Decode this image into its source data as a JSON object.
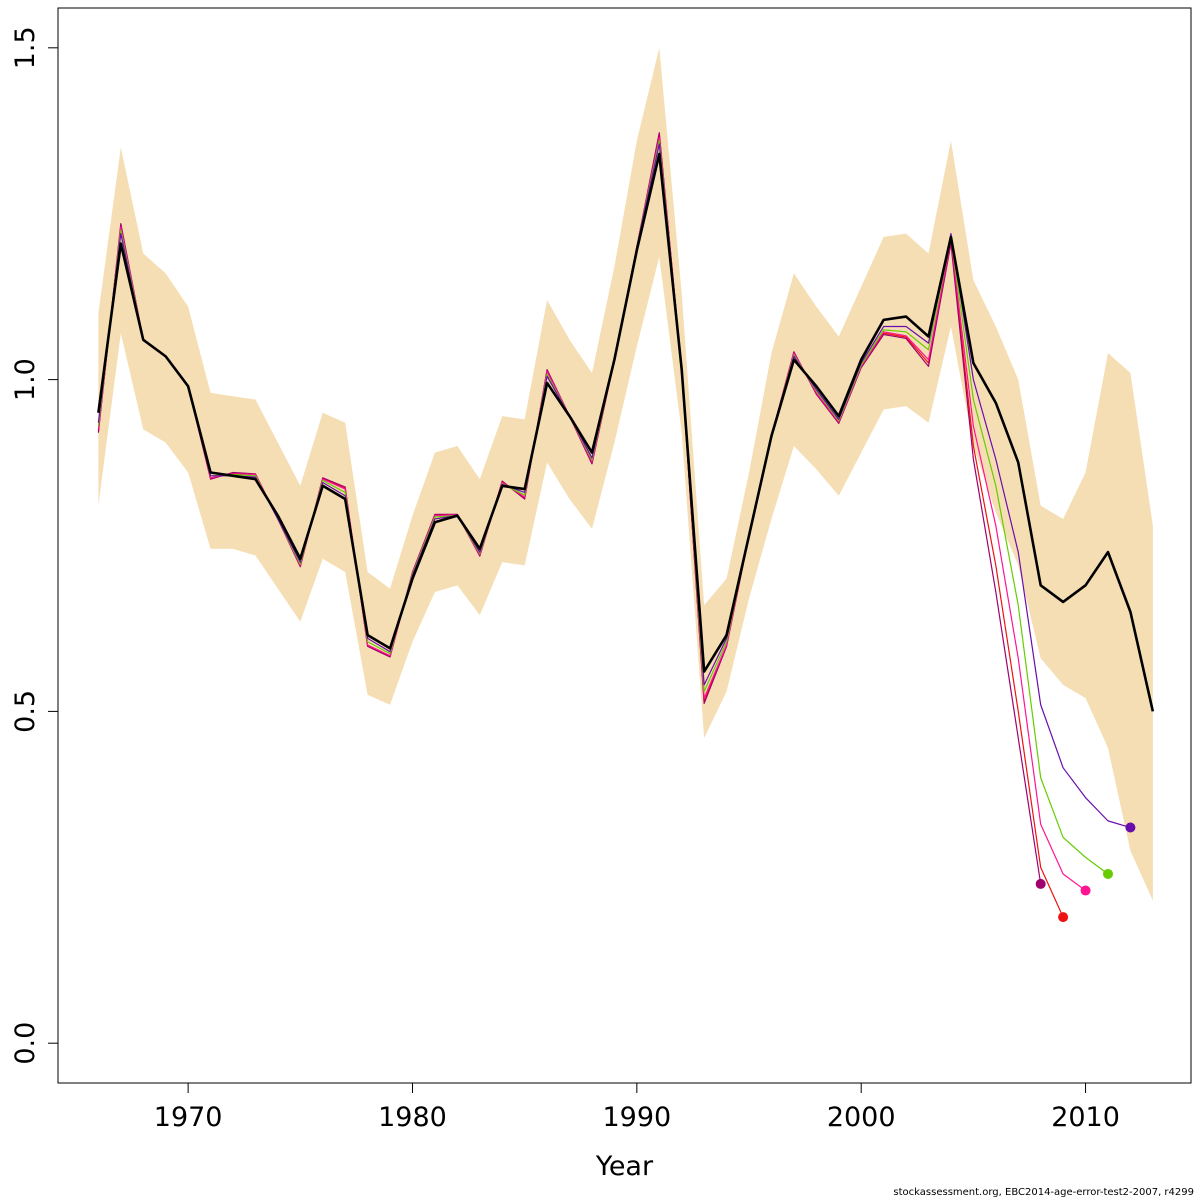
{
  "chart_data": {
    "type": "line",
    "title": "",
    "xlabel": "Year",
    "ylabel": "",
    "xlim": [
      1964.2,
      2014.7
    ],
    "ylim": [
      -0.06,
      1.56
    ],
    "x_ticks": [
      1970,
      1980,
      1990,
      2000,
      2010
    ],
    "x_tick_labels": [
      "1970",
      "1980",
      "1990",
      "2000",
      "2010"
    ],
    "y_ticks": [
      0.0,
      0.5,
      1.0,
      1.5
    ],
    "y_tick_labels": [
      "0.0",
      "0.5",
      "1.0",
      "1.5"
    ],
    "band_color": "#F5DEB3",
    "band": {
      "x": [
        1966,
        1967,
        1968,
        1969,
        1970,
        1971,
        1972,
        1973,
        1974,
        1975,
        1976,
        1977,
        1978,
        1979,
        1980,
        1981,
        1982,
        1983,
        1984,
        1985,
        1986,
        1987,
        1988,
        1989,
        1990,
        1991,
        1992,
        1993,
        1994,
        1995,
        1996,
        1997,
        1998,
        1999,
        2000,
        2001,
        2002,
        2003,
        2004,
        2005,
        2006,
        2007,
        2008,
        2009,
        2010,
        2011,
        2012,
        2013
      ],
      "upper": [
        1.1,
        1.35,
        1.19,
        1.16,
        1.11,
        0.98,
        0.975,
        0.97,
        0.905,
        0.84,
        0.95,
        0.935,
        0.71,
        0.685,
        0.795,
        0.89,
        0.9,
        0.85,
        0.945,
        0.94,
        1.12,
        1.06,
        1.01,
        1.17,
        1.36,
        1.5,
        1.13,
        0.66,
        0.7,
        0.86,
        1.04,
        1.16,
        1.11,
        1.065,
        1.14,
        1.215,
        1.22,
        1.19,
        1.36,
        1.15,
        1.08,
        1.0,
        0.81,
        0.79,
        0.86,
        1.04,
        1.01,
        0.78
      ],
      "lower": [
        0.81,
        1.07,
        0.925,
        0.905,
        0.86,
        0.745,
        0.745,
        0.735,
        0.685,
        0.635,
        0.73,
        0.71,
        0.525,
        0.51,
        0.605,
        0.68,
        0.69,
        0.645,
        0.725,
        0.72,
        0.875,
        0.82,
        0.775,
        0.905,
        1.05,
        1.185,
        0.92,
        0.46,
        0.53,
        0.67,
        0.79,
        0.9,
        0.865,
        0.825,
        0.89,
        0.955,
        0.96,
        0.935,
        1.08,
        0.9,
        0.8,
        0.72,
        0.58,
        0.54,
        0.52,
        0.445,
        0.29,
        0.215
      ]
    },
    "series": [
      {
        "color": "#000000",
        "width": 2.6,
        "x": [
          1966,
          1967,
          1968,
          1969,
          1970,
          1971,
          1972,
          1973,
          1974,
          1975,
          1976,
          1977,
          1978,
          1979,
          1980,
          1981,
          1982,
          1983,
          1984,
          1985,
          1986,
          1987,
          1988,
          1989,
          1990,
          1991,
          1992,
          1993,
          1994,
          1995,
          1996,
          1997,
          1998,
          1999,
          2000,
          2001,
          2002,
          2003,
          2004,
          2005,
          2006,
          2007,
          2008,
          2009,
          2010,
          2011,
          2012,
          2013
        ],
        "y": [
          0.95,
          1.205,
          1.06,
          1.035,
          0.99,
          0.86,
          0.855,
          0.85,
          0.795,
          0.73,
          0.84,
          0.82,
          0.615,
          0.595,
          0.7,
          0.785,
          0.795,
          0.745,
          0.84,
          0.835,
          0.995,
          0.945,
          0.89,
          1.03,
          1.195,
          1.34,
          1.015,
          0.56,
          0.615,
          0.765,
          0.915,
          1.03,
          0.99,
          0.945,
          1.03,
          1.09,
          1.095,
          1.065,
          1.215,
          1.025,
          0.965,
          0.875,
          0.69,
          0.665,
          0.69,
          0.74,
          0.65,
          0.5
        ],
        "end_marker": false
      },
      {
        "color": "#6A0DAD",
        "width": 1.2,
        "x": [
          1966,
          1967,
          1968,
          1969,
          1970,
          1971,
          1972,
          1973,
          1974,
          1975,
          1976,
          1977,
          1978,
          1979,
          1980,
          1981,
          1982,
          1983,
          1984,
          1985,
          1986,
          1987,
          1988,
          1989,
          1990,
          1991,
          1992,
          1993,
          1994,
          1995,
          1996,
          1997,
          1998,
          1999,
          2000,
          2001,
          2002,
          2003,
          2004,
          2005,
          2006,
          2007,
          2008,
          2009,
          2010,
          2011,
          2012
        ],
        "y": [
          0.935,
          1.22,
          1.06,
          1.035,
          0.99,
          0.855,
          0.855,
          0.853,
          0.79,
          0.725,
          0.845,
          0.825,
          0.61,
          0.59,
          0.705,
          0.79,
          0.795,
          0.74,
          0.842,
          0.83,
          1.005,
          0.945,
          0.882,
          1.03,
          1.2,
          1.355,
          1.015,
          0.54,
          0.61,
          0.765,
          0.915,
          1.035,
          0.985,
          0.94,
          1.025,
          1.08,
          1.08,
          1.055,
          1.22,
          1.0,
          0.88,
          0.74,
          0.51,
          0.415,
          0.37,
          0.335,
          0.325
        ],
        "end_marker": true
      },
      {
        "color": "#66CC00",
        "width": 1.2,
        "x": [
          1966,
          1967,
          1968,
          1969,
          1970,
          1971,
          1972,
          1973,
          1974,
          1975,
          1976,
          1977,
          1978,
          1979,
          1980,
          1981,
          1982,
          1983,
          1984,
          1985,
          1986,
          1987,
          1988,
          1989,
          1990,
          1991,
          1992,
          1993,
          1994,
          1995,
          1996,
          1997,
          1998,
          1999,
          2000,
          2001,
          2002,
          2003,
          2004,
          2005,
          2006,
          2007,
          2008,
          2009,
          2010,
          2011
        ],
        "y": [
          0.93,
          1.225,
          1.06,
          1.035,
          0.99,
          0.855,
          0.857,
          0.855,
          0.79,
          0.722,
          0.848,
          0.83,
          0.605,
          0.587,
          0.707,
          0.793,
          0.795,
          0.738,
          0.843,
          0.826,
          1.008,
          0.945,
          0.879,
          1.03,
          1.2,
          1.36,
          1.015,
          0.53,
          0.605,
          0.765,
          0.915,
          1.037,
          0.983,
          0.938,
          1.022,
          1.075,
          1.072,
          1.045,
          1.215,
          0.97,
          0.84,
          0.66,
          0.4,
          0.31,
          0.28,
          0.255
        ],
        "end_marker": true
      },
      {
        "color": "#FF1493",
        "width": 1.2,
        "x": [
          1966,
          1967,
          1968,
          1969,
          1970,
          1971,
          1972,
          1973,
          1974,
          1975,
          1976,
          1977,
          1978,
          1979,
          1980,
          1981,
          1982,
          1983,
          1984,
          1985,
          1986,
          1987,
          1988,
          1989,
          1990,
          1991,
          1992,
          1993,
          1994,
          1995,
          1996,
          1997,
          1998,
          1999,
          2000,
          2001,
          2002,
          2003,
          2004,
          2005,
          2006,
          2007,
          2008,
          2009,
          2010
        ],
        "y": [
          0.925,
          1.23,
          1.06,
          1.035,
          0.99,
          0.852,
          0.858,
          0.857,
          0.79,
          0.72,
          0.85,
          0.835,
          0.6,
          0.584,
          0.708,
          0.795,
          0.796,
          0.736,
          0.845,
          0.823,
          1.012,
          0.945,
          0.876,
          1.03,
          1.2,
          1.365,
          1.015,
          0.52,
          0.6,
          0.765,
          0.915,
          1.04,
          0.98,
          0.936,
          1.02,
          1.072,
          1.066,
          1.03,
          1.21,
          0.93,
          0.78,
          0.58,
          0.33,
          0.255,
          0.23
        ],
        "end_marker": true
      },
      {
        "color": "#A0006E",
        "width": 1.2,
        "x": [
          1966,
          1967,
          1968,
          1969,
          1970,
          1971,
          1972,
          1973,
          1974,
          1975,
          1976,
          1977,
          1978,
          1979,
          1980,
          1981,
          1982,
          1983,
          1984,
          1985,
          1986,
          1987,
          1988,
          1989,
          1990,
          1991,
          1992,
          1993,
          1994,
          1995,
          1996,
          1997,
          1998,
          1999,
          2000,
          2001,
          2002,
          2003,
          2004,
          2005,
          2006,
          2007,
          2008
        ],
        "y": [
          0.92,
          1.235,
          1.06,
          1.035,
          0.99,
          0.85,
          0.86,
          0.858,
          0.79,
          0.718,
          0.852,
          0.838,
          0.598,
          0.582,
          0.71,
          0.797,
          0.797,
          0.734,
          0.847,
          0.82,
          1.015,
          0.945,
          0.873,
          1.03,
          1.2,
          1.372,
          1.015,
          0.512,
          0.598,
          0.765,
          0.915,
          1.042,
          0.978,
          0.934,
          1.018,
          1.068,
          1.062,
          1.02,
          1.205,
          0.88,
          0.68,
          0.46,
          0.24
        ],
        "end_marker": true
      },
      {
        "color": "#EE1111",
        "width": 1.2,
        "x": [
          1966,
          1967,
          1968,
          1969,
          1970,
          1971,
          1972,
          1973,
          1974,
          1975,
          1976,
          1977,
          1978,
          1979,
          1980,
          1981,
          1982,
          1983,
          1984,
          1985,
          1986,
          1987,
          1988,
          1989,
          1990,
          1991,
          1992,
          1993,
          1994,
          1995,
          1996,
          1997,
          1998,
          1999,
          2000,
          2001,
          2002,
          2003,
          2004,
          2005,
          2006,
          2007,
          2008,
          2009
        ],
        "y": [
          0.922,
          1.232,
          1.06,
          1.035,
          0.99,
          0.851,
          0.859,
          0.857,
          0.79,
          0.719,
          0.851,
          0.836,
          0.599,
          0.583,
          0.709,
          0.796,
          0.796,
          0.735,
          0.846,
          0.821,
          1.014,
          0.945,
          0.874,
          1.03,
          1.2,
          1.37,
          1.015,
          0.515,
          0.599,
          0.765,
          0.915,
          1.041,
          0.979,
          0.935,
          1.019,
          1.07,
          1.064,
          1.025,
          1.208,
          0.9,
          0.72,
          0.5,
          0.265,
          0.19
        ],
        "end_marker": true
      }
    ]
  },
  "footer": "stockassessment.org, EBC2014-age-error-test2-2007, r4299"
}
